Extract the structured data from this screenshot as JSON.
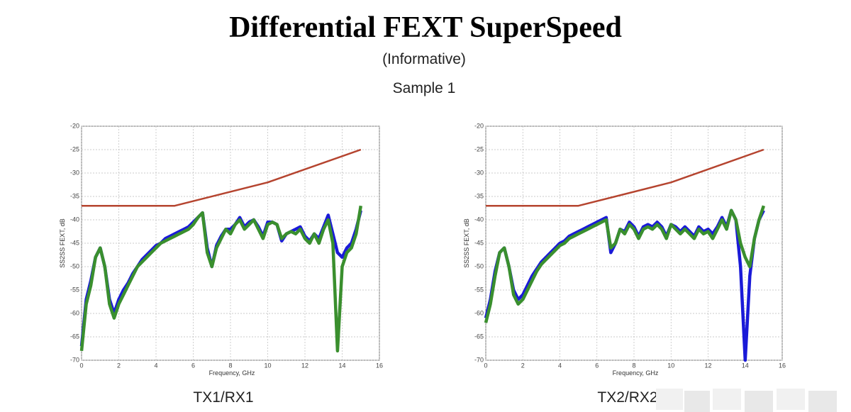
{
  "slide": {
    "title": "Differential FEXT SuperSpeed",
    "subtitle": "(Informative)",
    "sample": "Sample 1"
  },
  "chart_data": [
    {
      "type": "line",
      "caption": "TX1/RX1",
      "x_label": "Frequency, GHz",
      "y_label": "SS2SS FEXT, dB",
      "xlim": [
        0,
        16
      ],
      "xticks": [
        0,
        2,
        4,
        6,
        8,
        10,
        12,
        14,
        16
      ],
      "ylim": [
        -70,
        -20
      ],
      "yticks": [
        -70,
        -65,
        -60,
        -55,
        -50,
        -45,
        -40,
        -35,
        -30,
        -25,
        -20
      ],
      "grid": true,
      "series": [
        {
          "color": "#b5442f",
          "x": [
            0,
            5,
            10,
            15
          ],
          "values": [
            -37,
            -37,
            -32,
            -25
          ]
        },
        {
          "color": "#1a1ad8",
          "x": [
            0,
            0.25,
            0.5,
            0.75,
            1,
            1.25,
            1.5,
            1.75,
            2,
            2.25,
            2.5,
            2.75,
            3,
            3.25,
            3.5,
            3.75,
            4,
            4.25,
            4.5,
            4.75,
            5,
            5.25,
            5.5,
            5.75,
            6,
            6.25,
            6.5,
            6.75,
            7,
            7.25,
            7.5,
            7.75,
            8,
            8.25,
            8.5,
            8.75,
            9,
            9.25,
            9.5,
            9.75,
            10,
            10.25,
            10.5,
            10.75,
            11,
            11.25,
            11.5,
            11.75,
            12,
            12.25,
            12.5,
            12.75,
            13,
            13.25,
            13.5,
            13.75,
            14,
            14.25,
            14.5,
            14.75,
            15
          ],
          "values": [
            -67,
            -57,
            -53,
            -48,
            -46,
            -50,
            -57,
            -60,
            -57,
            -55,
            -53.5,
            -51.5,
            -50,
            -48.5,
            -47.5,
            -46.5,
            -45.5,
            -45,
            -44,
            -43.5,
            -43,
            -42.5,
            -42,
            -41.5,
            -40.5,
            -39.5,
            -38.5,
            -46,
            -50,
            -45.5,
            -43.5,
            -42,
            -42,
            -41,
            -39.5,
            -41.5,
            -40.5,
            -40,
            -41.5,
            -43.5,
            -40.5,
            -40.5,
            -41,
            -44.5,
            -43,
            -42.5,
            -42,
            -41.5,
            -43.5,
            -44.5,
            -43,
            -44,
            -41.5,
            -39,
            -43,
            -47,
            -48,
            -46,
            -45,
            -42,
            -38
          ]
        },
        {
          "color": "#3a8f2e",
          "x": [
            0,
            0.25,
            0.5,
            0.75,
            1,
            1.25,
            1.5,
            1.75,
            2,
            2.25,
            2.5,
            2.75,
            3,
            3.25,
            3.5,
            3.75,
            4,
            4.25,
            4.5,
            4.75,
            5,
            5.25,
            5.5,
            5.75,
            6,
            6.25,
            6.5,
            6.75,
            7,
            7.25,
            7.5,
            7.75,
            8,
            8.25,
            8.5,
            8.75,
            9,
            9.25,
            9.5,
            9.75,
            10,
            10.25,
            10.5,
            10.75,
            11,
            11.25,
            11.5,
            11.75,
            12,
            12.25,
            12.5,
            12.75,
            13,
            13.25,
            13.5,
            13.75,
            14,
            14.25,
            14.5,
            14.75,
            15
          ],
          "values": [
            -68,
            -58,
            -54,
            -48,
            -46,
            -50,
            -58,
            -61,
            -58,
            -56,
            -54,
            -52,
            -50,
            -49,
            -48,
            -47,
            -46,
            -45,
            -44.5,
            -44,
            -43.5,
            -43,
            -42.5,
            -42,
            -41,
            -39.5,
            -38.5,
            -47,
            -50,
            -46,
            -44,
            -42,
            -43,
            -41,
            -40,
            -42,
            -41,
            -40,
            -42,
            -44,
            -41,
            -40.5,
            -41,
            -44,
            -43,
            -42.5,
            -43,
            -42,
            -44,
            -45,
            -43,
            -45,
            -42,
            -40,
            -45,
            -68,
            -50,
            -47,
            -46,
            -43,
            -37
          ]
        }
      ]
    },
    {
      "type": "line",
      "caption": "TX2/RX2",
      "x_label": "Frequency, GHz",
      "y_label": "SS2SS FEXT, dB",
      "xlim": [
        0,
        16
      ],
      "xticks": [
        0,
        2,
        4,
        6,
        8,
        10,
        12,
        14,
        16
      ],
      "ylim": [
        -70,
        -20
      ],
      "yticks": [
        -70,
        -65,
        -60,
        -55,
        -50,
        -45,
        -40,
        -35,
        -30,
        -25,
        -20
      ],
      "grid": true,
      "series": [
        {
          "color": "#b5442f",
          "x": [
            0,
            5,
            10,
            15
          ],
          "values": [
            -37,
            -37,
            -32,
            -25
          ]
        },
        {
          "color": "#1a1ad8",
          "x": [
            0,
            0.25,
            0.5,
            0.75,
            1,
            1.25,
            1.5,
            1.75,
            2,
            2.25,
            2.5,
            2.75,
            3,
            3.25,
            3.5,
            3.75,
            4,
            4.25,
            4.5,
            4.75,
            5,
            5.25,
            5.5,
            5.75,
            6,
            6.25,
            6.5,
            6.75,
            7,
            7.25,
            7.5,
            7.75,
            8,
            8.25,
            8.5,
            8.75,
            9,
            9.25,
            9.5,
            9.75,
            10,
            10.25,
            10.5,
            10.75,
            11,
            11.25,
            11.5,
            11.75,
            12,
            12.25,
            12.5,
            12.75,
            13,
            13.25,
            13.5,
            13.75,
            14,
            14.25,
            14.5,
            14.75,
            15
          ],
          "values": [
            -61,
            -57,
            -51,
            -47,
            -46,
            -50,
            -55,
            -57,
            -56,
            -54,
            -52,
            -50.5,
            -49,
            -48,
            -47,
            -46,
            -45,
            -44.5,
            -43.5,
            -43,
            -42.5,
            -42,
            -41.5,
            -41,
            -40.5,
            -40,
            -39.5,
            -47,
            -45,
            -42,
            -42.5,
            -40.5,
            -41.5,
            -43.5,
            -41.5,
            -41,
            -41.5,
            -40.5,
            -41.5,
            -43.5,
            -41,
            -41.5,
            -42.5,
            -41.5,
            -42.5,
            -43.5,
            -41.5,
            -42.5,
            -42,
            -43,
            -41.5,
            -39.5,
            -41.5,
            -38,
            -40,
            -50,
            -70,
            -52,
            -44,
            -40,
            -38
          ]
        },
        {
          "color": "#3a8f2e",
          "x": [
            0,
            0.25,
            0.5,
            0.75,
            1,
            1.25,
            1.5,
            1.75,
            2,
            2.25,
            2.5,
            2.75,
            3,
            3.25,
            3.5,
            3.75,
            4,
            4.25,
            4.5,
            4.75,
            5,
            5.25,
            5.5,
            5.75,
            6,
            6.25,
            6.5,
            6.75,
            7,
            7.25,
            7.5,
            7.75,
            8,
            8.25,
            8.5,
            8.75,
            9,
            9.25,
            9.5,
            9.75,
            10,
            10.25,
            10.5,
            10.75,
            11,
            11.25,
            11.5,
            11.75,
            12,
            12.25,
            12.5,
            12.75,
            13,
            13.25,
            13.5,
            13.75,
            14,
            14.25,
            14.5,
            14.75,
            15
          ],
          "values": [
            -62,
            -58,
            -52,
            -47,
            -46,
            -50,
            -56,
            -58,
            -57,
            -55,
            -53,
            -51,
            -49.5,
            -48.5,
            -47.5,
            -46.5,
            -45.5,
            -45,
            -44,
            -43.5,
            -43,
            -42.5,
            -42,
            -41.5,
            -41,
            -40.5,
            -40,
            -46,
            -45,
            -42,
            -43,
            -41,
            -42,
            -44,
            -42,
            -41.5,
            -42,
            -41,
            -42,
            -44,
            -41,
            -42,
            -43,
            -42,
            -43,
            -44,
            -42,
            -43,
            -42.5,
            -44,
            -42,
            -40,
            -42,
            -38,
            -40,
            -45,
            -48,
            -50,
            -44,
            -40,
            -37
          ]
        }
      ]
    }
  ]
}
